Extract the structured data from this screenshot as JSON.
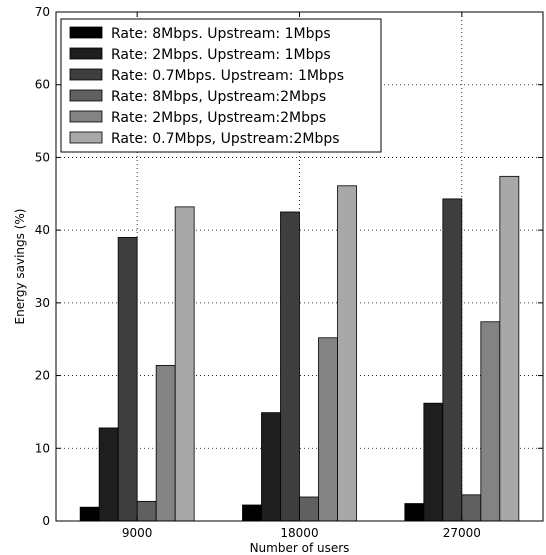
{
  "chart_data": {
    "type": "bar",
    "title": "",
    "xlabel": "Number of users",
    "ylabel": "Energy savings (%)",
    "ylim": [
      0,
      70
    ],
    "yticks": [
      0,
      10,
      20,
      30,
      40,
      50,
      60,
      70
    ],
    "grid": true,
    "legend_position": "top-left",
    "categories": [
      "9000",
      "18000",
      "27000"
    ],
    "series": [
      {
        "name": "Rate: 8Mbps. Upstream: 1Mbps",
        "color": "#000000",
        "values": [
          1.9,
          2.2,
          2.4
        ]
      },
      {
        "name": "Rate: 2Mbps. Upstream: 1Mbps",
        "color": "#1e1e1e",
        "values": [
          12.8,
          14.9,
          16.2
        ]
      },
      {
        "name": "Rate: 0.7Mbps. Upstream: 1Mbps",
        "color": "#3e3e3e",
        "values": [
          39.0,
          42.5,
          44.3
        ]
      },
      {
        "name": "Rate: 8Mbps, Upstream:2Mbps",
        "color": "#606060",
        "values": [
          2.7,
          3.3,
          3.6
        ]
      },
      {
        "name": "Rate: 2Mbps, Upstream:2Mbps",
        "color": "#838383",
        "values": [
          21.4,
          25.2,
          27.4
        ]
      },
      {
        "name": "Rate: 0.7Mbps, Upstream:2Mbps",
        "color": "#a8a8a8",
        "values": [
          43.2,
          46.1,
          47.4
        ]
      }
    ]
  }
}
